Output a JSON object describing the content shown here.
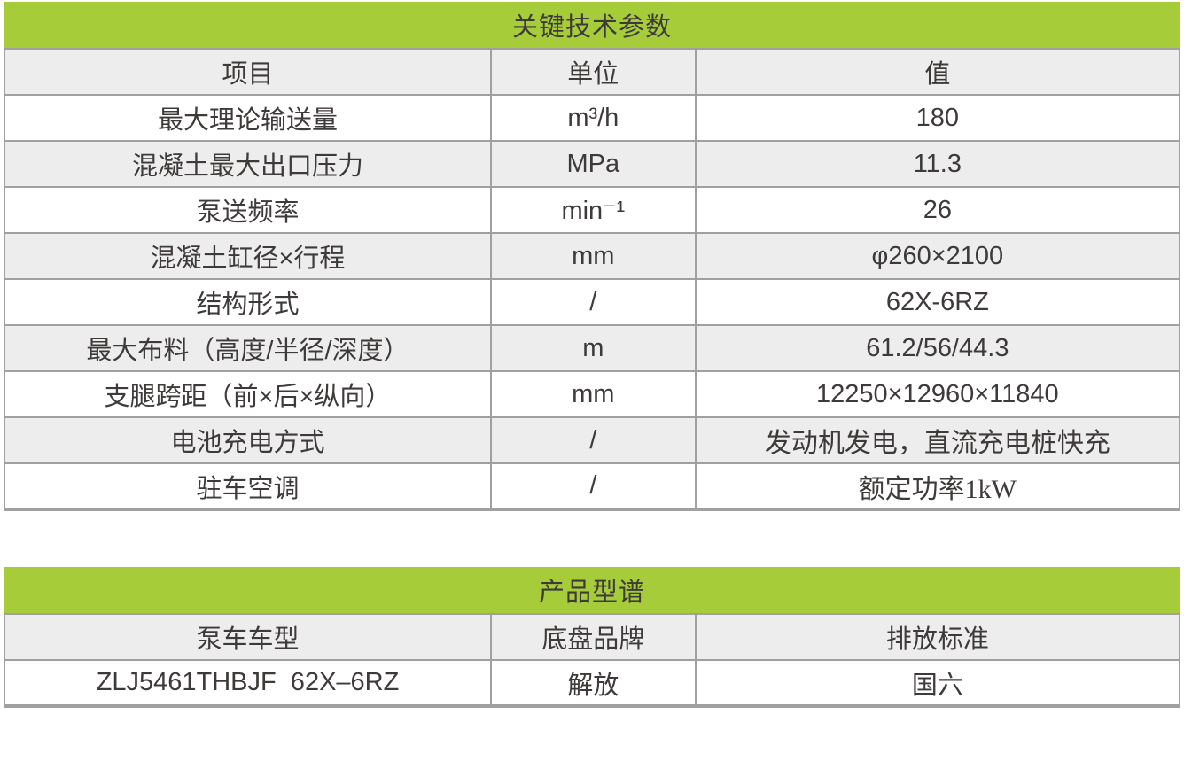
{
  "colors": {
    "accent_green": "#a7cc3a",
    "row_alt_gray": "#ededed",
    "border_gray": "#a0a0a0",
    "text_dark": "#3e3a39"
  },
  "spec_table": {
    "title": "关键技术参数",
    "headers": {
      "item": "项目",
      "unit": "单位",
      "value": "值"
    },
    "rows": [
      {
        "item": "最大理论输送量",
        "unit": "m³/h",
        "value": "180"
      },
      {
        "item": "混凝土最大出口压力",
        "unit": "MPa",
        "value": "11.3"
      },
      {
        "item": "泵送频率",
        "unit": "min⁻¹",
        "value": "26"
      },
      {
        "item": "混凝土缸径×行程",
        "unit": "mm",
        "value": "φ260×2100"
      },
      {
        "item": "结构形式",
        "unit": "/",
        "value": "62X-6RZ"
      },
      {
        "item": "最大布料（高度/半径/深度）",
        "unit": "m",
        "value": "61.2/56/44.3"
      },
      {
        "item": "支腿跨距（前×后×纵向）",
        "unit": "mm",
        "value": "12250×12960×11840"
      },
      {
        "item": "电池充电方式",
        "unit": "/",
        "value": "发动机发电，直流充电桩快充"
      },
      {
        "item": "驻车空调",
        "unit": "/",
        "value": "额定功率1kW"
      }
    ]
  },
  "product_table": {
    "title": "产品型谱",
    "headers": {
      "model": "泵车车型",
      "chassis": "底盘品牌",
      "emission": "排放标准"
    },
    "rows": [
      {
        "model": "ZLJ5461THBJF  62X–6RZ",
        "chassis": "解放",
        "emission": "国六"
      }
    ]
  }
}
